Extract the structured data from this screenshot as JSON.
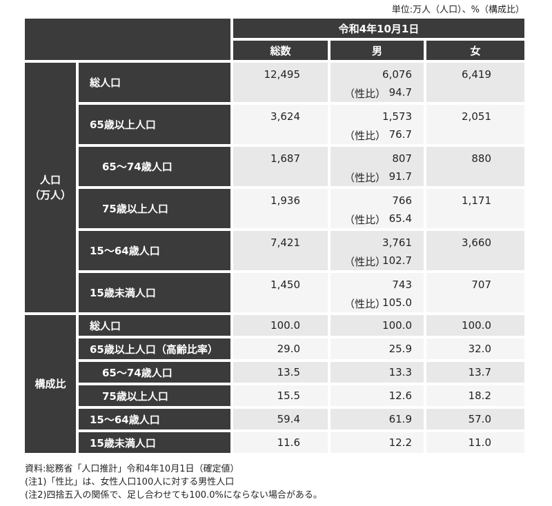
{
  "unit": "単位:万人（人口）、%（構成比）",
  "header": {
    "date": "令和4年10月1日",
    "columns": [
      "総数",
      "男",
      "女"
    ]
  },
  "population": {
    "label": [
      "人口",
      "（万人）"
    ],
    "ratio_label": "（性比）",
    "rows": [
      {
        "label": "総人口",
        "total": "12,495",
        "male": "6,076",
        "ratio": "94.7",
        "female": "6,419"
      },
      {
        "label": "65歳以上人口",
        "total": "3,624",
        "male": "1,573",
        "ratio": "76.7",
        "female": "2,051"
      },
      {
        "label": "65〜74歳人口",
        "total": "1,687",
        "male": "807",
        "ratio": "91.7",
        "female": "880"
      },
      {
        "label": "75歳以上人口",
        "total": "1,936",
        "male": "766",
        "ratio": "65.4",
        "female": "1,171"
      },
      {
        "label": "15〜64歳人口",
        "total": "7,421",
        "male": "3,761",
        "ratio": "102.7",
        "female": "3,660"
      },
      {
        "label": "15歳未満人口",
        "total": "1,450",
        "male": "743",
        "ratio": "105.0",
        "female": "707"
      }
    ]
  },
  "composition": {
    "label": "構成比",
    "rows": [
      {
        "label": "総人口",
        "total": "100.0",
        "male": "100.0",
        "female": "100.0"
      },
      {
        "label": "65歳以上人口（高齢比率）",
        "total": "29.0",
        "male": "25.9",
        "female": "32.0"
      },
      {
        "label": "65〜74歳人口",
        "total": "13.5",
        "male": "13.3",
        "female": "13.7"
      },
      {
        "label": "75歳以上人口",
        "total": "15.5",
        "male": "12.6",
        "female": "18.2"
      },
      {
        "label": "15〜64歳人口",
        "total": "59.4",
        "male": "61.9",
        "female": "57.0"
      },
      {
        "label": "15歳未満人口",
        "total": "11.6",
        "male": "12.2",
        "female": "11.0"
      }
    ]
  },
  "notes": [
    "資料:総務省「人口推計」令和4年10月1日（確定値）",
    "(注1)「性比」は、女性人口100人に対する男性人口",
    "(注2)四捨五入の関係で、足し合わせても100.0%にならない場合がある。"
  ]
}
